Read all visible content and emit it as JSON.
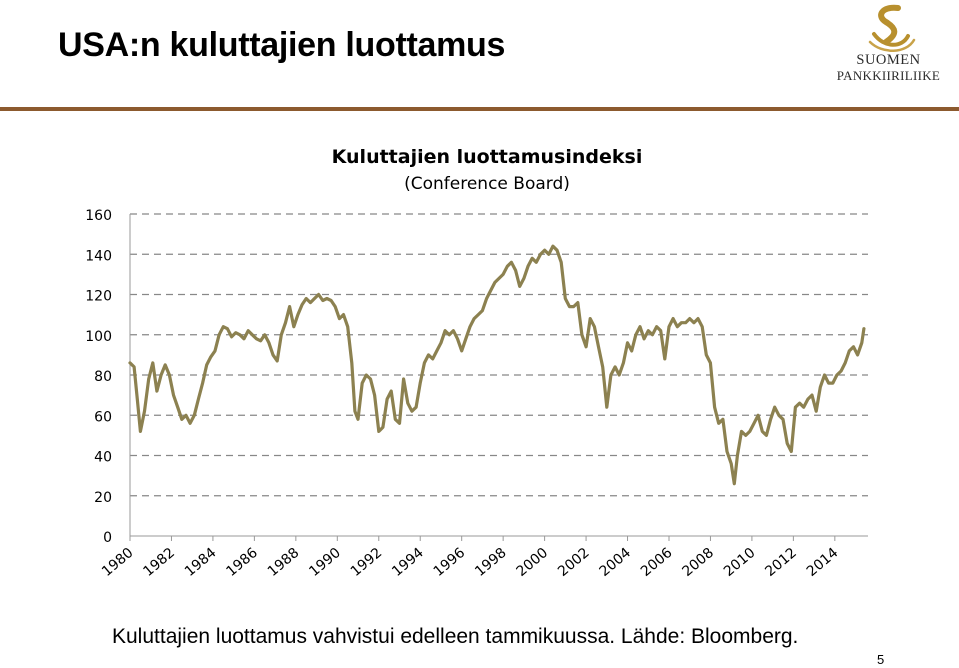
{
  "slide": {
    "title": "USA:n kuluttajien luottamus",
    "caption": "Kuluttajien luottamus vahvistui edelleen tammikuussa. Lähde: Bloomberg.",
    "page_number": "5"
  },
  "logo": {
    "line1": "SUOMEN",
    "line2": "PANKKIIRILIIKE",
    "color": "#b8902e"
  },
  "colors": {
    "divider": "#8c5a2e",
    "series": "#8c8150",
    "grid": "#888888"
  },
  "chart_data": {
    "type": "line",
    "title": "Kuluttajien luottamusindeksi",
    "subtitle": "(Conference Board)",
    "xlabel": "",
    "ylabel": "",
    "ylim": [
      0,
      160
    ],
    "y_ticks": [
      "0",
      "20",
      "40",
      "60",
      "80",
      "100",
      "120",
      "140",
      "160"
    ],
    "x_ticks": [
      "1980",
      "1982",
      "1984",
      "1986",
      "1988",
      "1990",
      "1992",
      "1994",
      "1996",
      "1998",
      "2000",
      "2002",
      "2004",
      "2006",
      "2008",
      "2010",
      "2012",
      "2014"
    ],
    "x_range": [
      1980,
      2015.6
    ],
    "grid": "horizontal dashed",
    "series": [
      {
        "values": [
          [
            1980.0,
            86
          ],
          [
            1980.2,
            84
          ],
          [
            1980.35,
            68
          ],
          [
            1980.5,
            52
          ],
          [
            1980.7,
            62
          ],
          [
            1980.9,
            78
          ],
          [
            1981.1,
            86
          ],
          [
            1981.3,
            72
          ],
          [
            1981.5,
            80
          ],
          [
            1981.7,
            85
          ],
          [
            1981.9,
            80
          ],
          [
            1982.1,
            70
          ],
          [
            1982.3,
            64
          ],
          [
            1982.5,
            58
          ],
          [
            1982.7,
            60
          ],
          [
            1982.9,
            56
          ],
          [
            1983.1,
            60
          ],
          [
            1983.3,
            68
          ],
          [
            1983.5,
            76
          ],
          [
            1983.7,
            85
          ],
          [
            1983.9,
            89
          ],
          [
            1984.1,
            92
          ],
          [
            1984.3,
            100
          ],
          [
            1984.5,
            104
          ],
          [
            1984.7,
            103
          ],
          [
            1984.9,
            99
          ],
          [
            1985.1,
            101
          ],
          [
            1985.3,
            100
          ],
          [
            1985.5,
            98
          ],
          [
            1985.7,
            102
          ],
          [
            1985.9,
            100
          ],
          [
            1986.1,
            98
          ],
          [
            1986.3,
            97
          ],
          [
            1986.5,
            100
          ],
          [
            1986.7,
            96
          ],
          [
            1986.9,
            90
          ],
          [
            1987.1,
            87
          ],
          [
            1987.3,
            100
          ],
          [
            1987.5,
            106
          ],
          [
            1987.7,
            114
          ],
          [
            1987.9,
            104
          ],
          [
            1988.1,
            110
          ],
          [
            1988.3,
            115
          ],
          [
            1988.5,
            118
          ],
          [
            1988.7,
            116
          ],
          [
            1988.9,
            118
          ],
          [
            1989.1,
            120
          ],
          [
            1989.3,
            117
          ],
          [
            1989.5,
            118
          ],
          [
            1989.7,
            117
          ],
          [
            1989.9,
            114
          ],
          [
            1990.1,
            108
          ],
          [
            1990.3,
            110
          ],
          [
            1990.5,
            104
          ],
          [
            1990.7,
            86
          ],
          [
            1990.85,
            62
          ],
          [
            1991.0,
            58
          ],
          [
            1991.2,
            76
          ],
          [
            1991.4,
            80
          ],
          [
            1991.6,
            78
          ],
          [
            1991.8,
            70
          ],
          [
            1992.0,
            52
          ],
          [
            1992.2,
            54
          ],
          [
            1992.4,
            68
          ],
          [
            1992.6,
            72
          ],
          [
            1992.8,
            58
          ],
          [
            1993.0,
            56
          ],
          [
            1993.2,
            78
          ],
          [
            1993.4,
            66
          ],
          [
            1993.6,
            62
          ],
          [
            1993.8,
            64
          ],
          [
            1994.0,
            76
          ],
          [
            1994.2,
            86
          ],
          [
            1994.4,
            90
          ],
          [
            1994.6,
            88
          ],
          [
            1994.8,
            92
          ],
          [
            1995.0,
            96
          ],
          [
            1995.2,
            102
          ],
          [
            1995.4,
            100
          ],
          [
            1995.6,
            102
          ],
          [
            1995.8,
            98
          ],
          [
            1996.0,
            92
          ],
          [
            1996.2,
            98
          ],
          [
            1996.4,
            104
          ],
          [
            1996.6,
            108
          ],
          [
            1996.8,
            110
          ],
          [
            1997.0,
            112
          ],
          [
            1997.2,
            118
          ],
          [
            1997.4,
            122
          ],
          [
            1997.6,
            126
          ],
          [
            1997.8,
            128
          ],
          [
            1998.0,
            130
          ],
          [
            1998.2,
            134
          ],
          [
            1998.4,
            136
          ],
          [
            1998.6,
            132
          ],
          [
            1998.8,
            124
          ],
          [
            1999.0,
            128
          ],
          [
            1999.2,
            134
          ],
          [
            1999.4,
            138
          ],
          [
            1999.6,
            136
          ],
          [
            1999.8,
            140
          ],
          [
            2000.0,
            142
          ],
          [
            2000.2,
            140
          ],
          [
            2000.4,
            144
          ],
          [
            2000.6,
            142
          ],
          [
            2000.8,
            136
          ],
          [
            2001.0,
            118
          ],
          [
            2001.2,
            114
          ],
          [
            2001.4,
            114
          ],
          [
            2001.6,
            116
          ],
          [
            2001.8,
            100
          ],
          [
            2002.0,
            94
          ],
          [
            2002.2,
            108
          ],
          [
            2002.4,
            104
          ],
          [
            2002.6,
            94
          ],
          [
            2002.8,
            84
          ],
          [
            2003.0,
            64
          ],
          [
            2003.2,
            80
          ],
          [
            2003.4,
            84
          ],
          [
            2003.6,
            80
          ],
          [
            2003.8,
            86
          ],
          [
            2004.0,
            96
          ],
          [
            2004.2,
            92
          ],
          [
            2004.4,
            100
          ],
          [
            2004.6,
            104
          ],
          [
            2004.8,
            98
          ],
          [
            2005.0,
            102
          ],
          [
            2005.2,
            100
          ],
          [
            2005.4,
            104
          ],
          [
            2005.6,
            102
          ],
          [
            2005.8,
            88
          ],
          [
            2006.0,
            104
          ],
          [
            2006.2,
            108
          ],
          [
            2006.4,
            104
          ],
          [
            2006.6,
            106
          ],
          [
            2006.8,
            106
          ],
          [
            2007.0,
            108
          ],
          [
            2007.2,
            106
          ],
          [
            2007.4,
            108
          ],
          [
            2007.6,
            104
          ],
          [
            2007.8,
            90
          ],
          [
            2008.0,
            86
          ],
          [
            2008.2,
            64
          ],
          [
            2008.4,
            56
          ],
          [
            2008.6,
            58
          ],
          [
            2008.8,
            42
          ],
          [
            2009.0,
            36
          ],
          [
            2009.15,
            26
          ],
          [
            2009.3,
            40
          ],
          [
            2009.5,
            52
          ],
          [
            2009.7,
            50
          ],
          [
            2009.9,
            52
          ],
          [
            2010.1,
            56
          ],
          [
            2010.3,
            60
          ],
          [
            2010.5,
            52
          ],
          [
            2010.7,
            50
          ],
          [
            2010.9,
            58
          ],
          [
            2011.1,
            64
          ],
          [
            2011.3,
            60
          ],
          [
            2011.5,
            58
          ],
          [
            2011.7,
            46
          ],
          [
            2011.9,
            42
          ],
          [
            2012.1,
            64
          ],
          [
            2012.3,
            66
          ],
          [
            2012.5,
            64
          ],
          [
            2012.7,
            68
          ],
          [
            2012.9,
            70
          ],
          [
            2013.1,
            62
          ],
          [
            2013.3,
            74
          ],
          [
            2013.5,
            80
          ],
          [
            2013.7,
            76
          ],
          [
            2013.9,
            76
          ],
          [
            2014.1,
            80
          ],
          [
            2014.3,
            82
          ],
          [
            2014.5,
            86
          ],
          [
            2014.7,
            92
          ],
          [
            2014.9,
            94
          ],
          [
            2015.1,
            90
          ],
          [
            2015.3,
            96
          ],
          [
            2015.4,
            103
          ]
        ]
      }
    ]
  }
}
